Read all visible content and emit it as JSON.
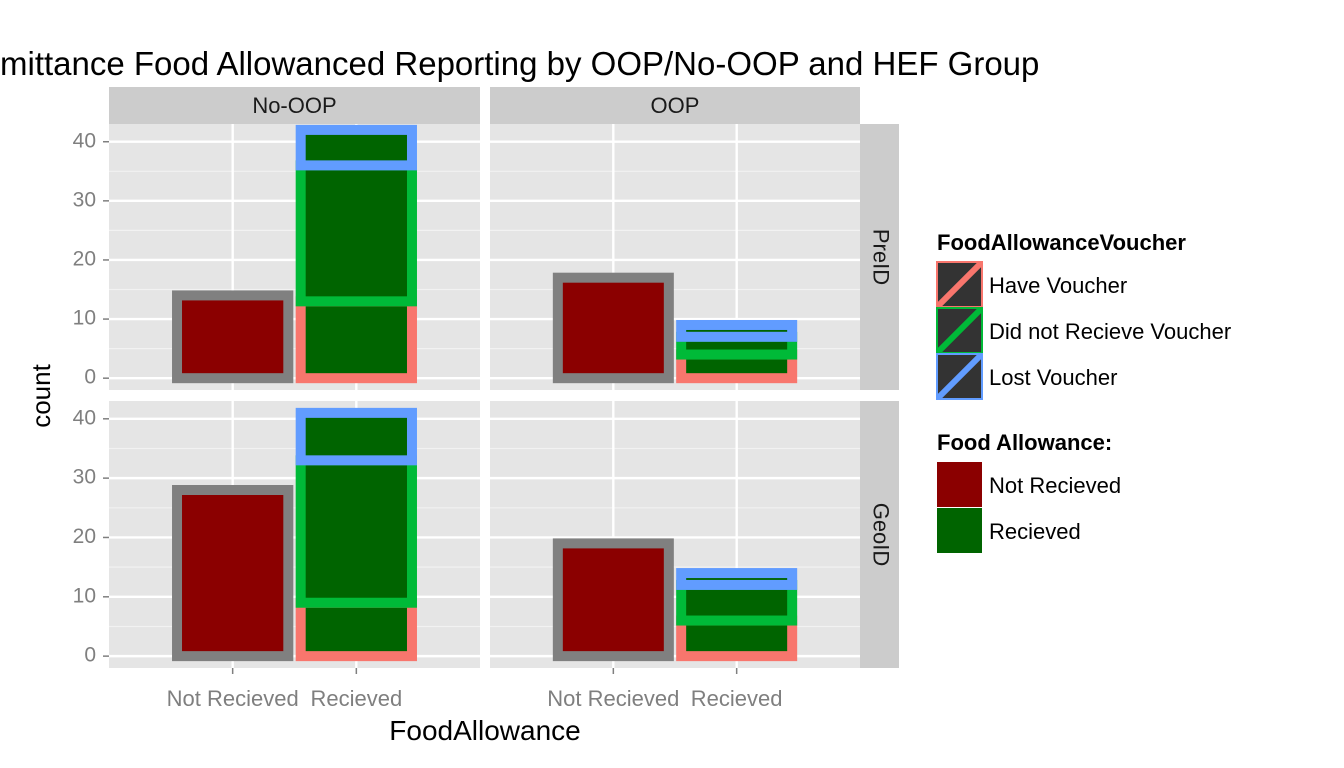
{
  "colors": {
    "panel_bg": "#e5e5e5",
    "strip_bg": "#cccccc",
    "grid_major": "#ffffff",
    "grid_minor": "#f2f2f2",
    "tick_text": "#7f7f7f",
    "not_recieved_fill": "#8b0000",
    "recieved_fill": "#006400",
    "not_recieved_outline": "#808080",
    "have_voucher": "#f8766d",
    "did_not_recieve_voucher": "#00ba38",
    "lost_voucher": "#619cff"
  },
  "chart_data": {
    "type": "bar",
    "title": "mittance Food Allowanced Reporting by OOP/No-OOP and HEF Group",
    "xlabel": "FoodAllowance",
    "ylabel": "count",
    "x_categories": [
      "Not Recieved",
      "Recieved"
    ],
    "y_ticks": [
      0,
      10,
      20,
      30,
      40
    ],
    "ylim": [
      -2,
      43
    ],
    "grid": true,
    "col_facets": [
      "No-OOP",
      "OOP"
    ],
    "row_facets": [
      "PreID",
      "GeoID"
    ],
    "panels": [
      {
        "col": "No-OOP",
        "row": "PreID",
        "bars": [
          {
            "category": "Not Recieved",
            "fill": "Not Recieved",
            "segments": [
              {
                "voucher": "NA",
                "count": 14
              }
            ]
          },
          {
            "category": "Recieved",
            "fill": "Recieved",
            "segments": [
              {
                "voucher": "Have Voucher",
                "count": 13
              },
              {
                "voucher": "Did not Recieve Voucher",
                "count": 23
              },
              {
                "voucher": "Lost Voucher",
                "count": 6
              }
            ]
          }
        ]
      },
      {
        "col": "OOP",
        "row": "PreID",
        "bars": [
          {
            "category": "Not Recieved",
            "fill": "Not Recieved",
            "segments": [
              {
                "voucher": "NA",
                "count": 17
              }
            ]
          },
          {
            "category": "Recieved",
            "fill": "Recieved",
            "segments": [
              {
                "voucher": "Have Voucher",
                "count": 4
              },
              {
                "voucher": "Did not Recieve Voucher",
                "count": 3
              },
              {
                "voucher": "Lost Voucher",
                "count": 2
              }
            ]
          }
        ]
      },
      {
        "col": "No-OOP",
        "row": "GeoID",
        "bars": [
          {
            "category": "Not Recieved",
            "fill": "Not Recieved",
            "segments": [
              {
                "voucher": "NA",
                "count": 28
              }
            ]
          },
          {
            "category": "Recieved",
            "fill": "Recieved",
            "segments": [
              {
                "voucher": "Have Voucher",
                "count": 9
              },
              {
                "voucher": "Did not Recieve Voucher",
                "count": 24
              },
              {
                "voucher": "Lost Voucher",
                "count": 8
              }
            ]
          }
        ]
      },
      {
        "col": "OOP",
        "row": "GeoID",
        "bars": [
          {
            "category": "Not Recieved",
            "fill": "Not Recieved",
            "segments": [
              {
                "voucher": "NA",
                "count": 19
              }
            ]
          },
          {
            "category": "Recieved",
            "fill": "Recieved",
            "segments": [
              {
                "voucher": "Have Voucher",
                "count": 6
              },
              {
                "voucher": "Did not Recieve Voucher",
                "count": 6
              },
              {
                "voucher": "Lost Voucher",
                "count": 2
              }
            ]
          }
        ]
      }
    ],
    "legend_position": "right",
    "legends": [
      {
        "title": "FoodAllowanceVoucher",
        "kind": "outline",
        "items": [
          {
            "label": "Have Voucher",
            "color": "#f8766d"
          },
          {
            "label": "Did not Recieve Voucher",
            "color": "#00ba38"
          },
          {
            "label": "Lost Voucher",
            "color": "#619cff"
          }
        ]
      },
      {
        "title": "Food Allowance:",
        "kind": "fill",
        "items": [
          {
            "label": "Not Recieved",
            "color": "#8b0000"
          },
          {
            "label": "Recieved",
            "color": "#006400"
          }
        ]
      }
    ]
  }
}
